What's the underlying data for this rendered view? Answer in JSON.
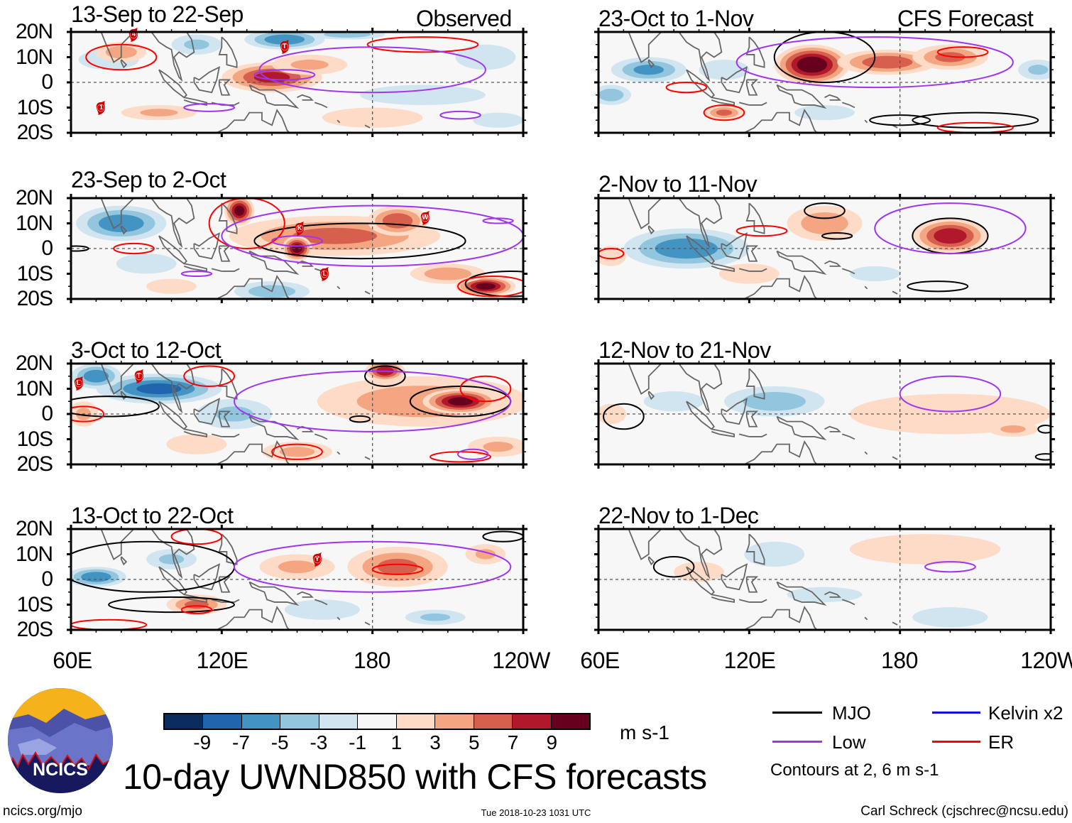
{
  "colors": {
    "levels": [
      "#0b2c5f",
      "#2166ac",
      "#4393c3",
      "#92c5de",
      "#d1e5f0",
      "#f7f7f7",
      "#fddbc7",
      "#f4a582",
      "#d6604d",
      "#b2182b",
      "#67001f"
    ],
    "MJO": "#000000",
    "Low": "#a035f0",
    "ER": "#ff0000",
    "Kelvin": "#1010e0",
    "coast": "#666666"
  },
  "column_labels": {
    "left": "Observed",
    "right": "CFS Forecast"
  },
  "lat_labels": [
    "20N",
    "10N",
    "0",
    "10S",
    "20S"
  ],
  "lon_labels": [
    "60E",
    "120E",
    "180",
    "120W"
  ],
  "panels": [
    {
      "title": "13-Sep to 22-Sep",
      "column": "left",
      "fields": [
        [
          145,
          17,
          16,
          4,
          -6
        ],
        [
          170,
          19,
          15,
          2,
          -4
        ],
        [
          75,
          9,
          12,
          4,
          -2
        ],
        [
          80,
          12,
          10,
          4,
          4
        ],
        [
          140,
          2,
          20,
          6,
          7
        ],
        [
          155,
          7,
          15,
          4,
          3
        ],
        [
          200,
          -5,
          25,
          4,
          -2
        ],
        [
          180,
          -14,
          20,
          4,
          2
        ],
        [
          225,
          10,
          12,
          5,
          -2
        ],
        [
          110,
          15,
          10,
          4,
          -3
        ],
        [
          95,
          -12,
          15,
          3,
          3
        ],
        [
          230,
          -15,
          10,
          3,
          -2
        ]
      ],
      "contours": [
        [
          "ER",
          80,
          10,
          14,
          5
        ],
        [
          "ER",
          200,
          15,
          22,
          3
        ],
        [
          "Low",
          180,
          5,
          45,
          9
        ],
        [
          "Low",
          145,
          3,
          12,
          2
        ],
        [
          "Low",
          115,
          -10,
          10,
          1.5
        ],
        [
          "Low",
          215,
          -13,
          8,
          1.5
        ]
      ],
      "storms": [
        [
          85,
          19,
          "4"
        ],
        [
          145,
          14,
          "T"
        ],
        [
          72,
          -10,
          "1"
        ]
      ]
    },
    {
      "title": "23-Sep to 2-Oct",
      "column": "left",
      "fields": [
        [
          80,
          10,
          18,
          7,
          -6
        ],
        [
          90,
          -6,
          12,
          4,
          -2
        ],
        [
          140,
          -17,
          15,
          4,
          -4
        ],
        [
          165,
          5,
          42,
          8,
          5
        ],
        [
          127,
          15,
          6,
          6,
          9
        ],
        [
          150,
          0,
          6,
          5,
          9
        ],
        [
          190,
          11,
          12,
          6,
          6
        ],
        [
          225,
          -15,
          12,
          4,
          9
        ],
        [
          210,
          -10,
          15,
          4,
          4
        ],
        [
          100,
          -15,
          10,
          3,
          2
        ]
      ],
      "contours": [
        [
          "MJO",
          175,
          3,
          42,
          7
        ],
        [
          "MJO",
          235,
          -14,
          18,
          5
        ],
        [
          "MJO",
          62,
          0,
          5,
          1
        ],
        [
          "ER",
          130,
          10,
          15,
          10
        ],
        [
          "ER",
          85,
          0,
          8,
          2
        ],
        [
          "ER",
          228,
          -15,
          14,
          4
        ],
        [
          "Low",
          180,
          5,
          60,
          12
        ],
        [
          "Low",
          150,
          3,
          10,
          2
        ],
        [
          "Low",
          110,
          -10,
          6,
          1
        ],
        [
          "Low",
          230,
          11,
          6,
          1
        ]
      ],
      "storms": [
        [
          151,
          8,
          "K"
        ],
        [
          161,
          -10,
          "L"
        ],
        [
          201,
          12,
          "W"
        ]
      ]
    },
    {
      "title": "3-Oct to 12-Oct",
      "column": "left",
      "fields": [
        [
          95,
          10,
          25,
          6,
          -7
        ],
        [
          70,
          15,
          10,
          5,
          -6
        ],
        [
          125,
          0,
          15,
          6,
          -3
        ],
        [
          200,
          5,
          42,
          10,
          4
        ],
        [
          215,
          5,
          15,
          5,
          9
        ],
        [
          185,
          17,
          8,
          4,
          8
        ],
        [
          65,
          0,
          6,
          5,
          3
        ],
        [
          150,
          -15,
          14,
          4,
          3
        ],
        [
          230,
          -13,
          12,
          4,
          3
        ],
        [
          110,
          -12,
          12,
          4,
          2
        ]
      ],
      "contours": [
        [
          "MJO",
          215,
          5,
          20,
          6
        ],
        [
          "MJO",
          185,
          15,
          8,
          4
        ],
        [
          "MJO",
          75,
          3,
          20,
          4
        ],
        [
          "MJO",
          175,
          -2,
          4,
          1.2
        ],
        [
          "ER",
          115,
          15,
          10,
          4
        ],
        [
          "ER",
          150,
          -15,
          10,
          3
        ],
        [
          "ER",
          225,
          10,
          10,
          5
        ],
        [
          "ER",
          65,
          0,
          8,
          3
        ],
        [
          "ER",
          215,
          -17,
          12,
          2
        ],
        [
          "Low",
          180,
          5,
          55,
          12
        ],
        [
          "Low",
          220,
          -16,
          6,
          2
        ]
      ],
      "storms": [
        [
          63,
          12,
          "L"
        ],
        [
          87,
          15,
          "T"
        ]
      ]
    },
    {
      "title": "13-Oct to 22-Oct",
      "column": "left",
      "fields": [
        [
          70,
          1,
          12,
          4,
          -6
        ],
        [
          100,
          8,
          10,
          4,
          -3
        ],
        [
          190,
          5,
          20,
          8,
          5
        ],
        [
          150,
          5,
          15,
          5,
          3
        ],
        [
          110,
          -10,
          12,
          4,
          5
        ],
        [
          205,
          -15,
          12,
          3,
          -3
        ],
        [
          160,
          -12,
          15,
          4,
          -2
        ],
        [
          225,
          10,
          8,
          4,
          3
        ]
      ],
      "contours": [
        [
          "MJO",
          90,
          5,
          35,
          10
        ],
        [
          "MJO",
          100,
          -10,
          25,
          3
        ],
        [
          "MJO",
          232,
          17,
          8,
          2
        ],
        [
          "Low",
          180,
          5,
          55,
          10
        ],
        [
          "ER",
          190,
          4,
          10,
          2
        ],
        [
          "ER",
          110,
          17,
          10,
          3
        ],
        [
          "ER",
          110,
          -12,
          6,
          1.5
        ],
        [
          "ER",
          75,
          -18,
          15,
          2
        ]
      ],
      "storms": [
        [
          158,
          8,
          "Y"
        ]
      ]
    },
    {
      "title": "23-Oct to 1-Nov",
      "column": "right",
      "fields": [
        [
          80,
          5,
          15,
          5,
          -5
        ],
        [
          65,
          -5,
          8,
          4,
          -4
        ],
        [
          110,
          5,
          10,
          4,
          -2
        ],
        [
          145,
          7,
          15,
          8,
          10
        ],
        [
          175,
          8,
          20,
          5,
          6
        ],
        [
          200,
          10,
          15,
          5,
          5
        ],
        [
          110,
          -12,
          8,
          3,
          5
        ],
        [
          235,
          5,
          8,
          4,
          -3
        ],
        [
          150,
          -12,
          12,
          3,
          -2
        ]
      ],
      "contours": [
        [
          "MJO",
          150,
          10,
          20,
          10
        ],
        [
          "MJO",
          210,
          -15,
          25,
          3
        ],
        [
          "MJO",
          180,
          -15,
          12,
          2
        ],
        [
          "Low",
          170,
          8,
          55,
          10
        ],
        [
          "ER",
          95,
          -2,
          8,
          2
        ],
        [
          "ER",
          110,
          -12,
          8,
          3
        ],
        [
          "ER",
          205,
          12,
          10,
          2
        ],
        [
          "ER",
          210,
          -18,
          15,
          2
        ]
      ],
      "storms": []
    },
    {
      "title": "2-Nov to 11-Nov",
      "column": "right",
      "fields": [
        [
          95,
          0,
          25,
          8,
          -6
        ],
        [
          200,
          5,
          15,
          7,
          8
        ],
        [
          150,
          10,
          15,
          7,
          4
        ],
        [
          120,
          -10,
          12,
          4,
          2
        ],
        [
          65,
          -3,
          6,
          4,
          2
        ],
        [
          170,
          -10,
          10,
          3,
          -2
        ]
      ],
      "contours": [
        [
          "MJO",
          200,
          5,
          15,
          7
        ],
        [
          "MJO",
          150,
          15,
          8,
          3
        ],
        [
          "MJO",
          155,
          5,
          6,
          1.2
        ],
        [
          "MJO",
          195,
          -15,
          12,
          2
        ],
        [
          "Low",
          200,
          8,
          30,
          10
        ],
        [
          "ER",
          65,
          -2,
          5,
          2
        ],
        [
          "ER",
          125,
          7,
          10,
          2
        ]
      ],
      "storms": []
    },
    {
      "title": "12-Nov to 21-Nov",
      "column": "right",
      "fields": [
        [
          130,
          5,
          20,
          6,
          -4
        ],
        [
          90,
          5,
          12,
          4,
          -2
        ],
        [
          200,
          0,
          40,
          8,
          2
        ],
        [
          65,
          0,
          6,
          4,
          2
        ],
        [
          225,
          -6,
          10,
          3,
          3
        ]
      ],
      "contours": [
        [
          "MJO",
          70,
          -1,
          8,
          5
        ],
        [
          "MJO",
          238,
          -6,
          3,
          1.5
        ],
        [
          "MJO",
          238,
          -17,
          4,
          1.2
        ],
        [
          "Low",
          200,
          8,
          20,
          7
        ]
      ],
      "storms": []
    },
    {
      "title": "22-Nov to 1-Dec",
      "column": "right",
      "fields": [
        [
          190,
          12,
          30,
          6,
          2
        ],
        [
          100,
          3,
          10,
          4,
          2
        ],
        [
          130,
          10,
          12,
          5,
          -2
        ],
        [
          200,
          -15,
          15,
          4,
          -2
        ],
        [
          150,
          -6,
          15,
          3,
          -2
        ]
      ],
      "contours": [
        [
          "MJO",
          90,
          5,
          8,
          4
        ],
        [
          "Low",
          200,
          5,
          10,
          2
        ]
      ],
      "storms": []
    }
  ],
  "colorbar": {
    "tick_labels": [
      "-9",
      "-7",
      "-5",
      "-3",
      "-1",
      "1",
      "3",
      "5",
      "7",
      "9"
    ],
    "units": "m s-1"
  },
  "title": "10-day UWND850 with CFS forecasts",
  "logo_text": "NCICS",
  "legend": {
    "items": [
      {
        "label": "MJO",
        "type": "MJO"
      },
      {
        "label": "Kelvin x2",
        "type": "Kelvin"
      },
      {
        "label": "Low",
        "type": "Low"
      },
      {
        "label": "ER",
        "type": "ER"
      }
    ],
    "note": "Contours at 2, 6 m s-1"
  },
  "footer": {
    "url": "ncics.org/mjo",
    "timestamp": "Tue 2018-10-23 1031 UTC",
    "credit": "Carl Schreck (cjschrec@ncsu.edu)"
  }
}
